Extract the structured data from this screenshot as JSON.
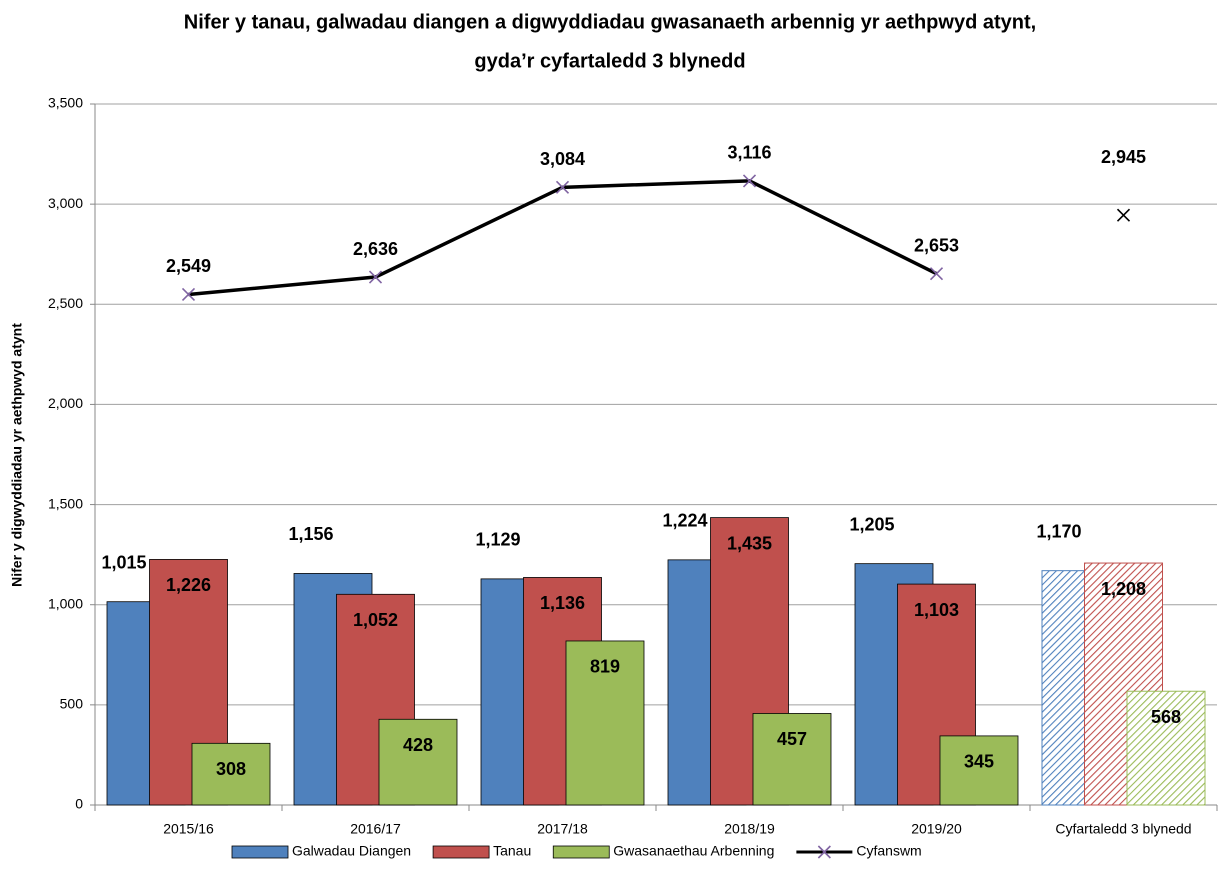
{
  "chart_data": {
    "type": "bar",
    "title": "Nifer y tanau, galwadau diangen a digwyddiadau gwasanaeth arbennig yr aethpwyd atynt,",
    "subtitle": "gyda’r cyfartaledd 3 blynedd",
    "y_label": "Nifer y digwyddiadau yr aethpwyd atynt",
    "categories": [
      "2015/16",
      "2016/17",
      "2017/18",
      "2018/19",
      "2019/20",
      "Cyfartaledd 3 blynedd"
    ],
    "hatched": [
      false,
      false,
      false,
      false,
      false,
      true
    ],
    "series": [
      {
        "name": "Galwadau Diangen",
        "type": "bar",
        "color": "#4f81bd",
        "values": [
          1015,
          1156,
          1129,
          1224,
          1205,
          1170
        ],
        "value_labels": [
          "1,015",
          "1,156",
          "1,129",
          "1,224",
          "1,205",
          "1,170"
        ]
      },
      {
        "name": "Tanau",
        "type": "bar",
        "color": "#c0504d",
        "values": [
          1226,
          1052,
          1136,
          1435,
          1103,
          1208
        ],
        "value_labels": [
          "1,226",
          "1,052",
          "1,136",
          "1,435",
          "1,103",
          "1,208"
        ]
      },
      {
        "name": "Gwasanaethau Arbenning",
        "type": "bar",
        "color": "#9bbb59",
        "values": [
          308,
          428,
          819,
          457,
          345,
          568
        ]
      },
      {
        "name": "Cyfanswm",
        "type": "line",
        "color": "#000000",
        "marker_color": "#8064a2",
        "values": [
          2549,
          2636,
          3084,
          3116,
          2653,
          2945
        ],
        "value_labels": [
          "2,549",
          "2,636",
          "3,084",
          "3,116",
          "2,653",
          "2,945"
        ]
      }
    ],
    "ylim": [
      0,
      3500
    ],
    "yticks": [
      0,
      500,
      {
        "value": 1000,
        "label": "1,000"
      },
      {
        "value": 1500,
        "label": "1,500"
      },
      {
        "value": 2000,
        "label": "2,000"
      },
      {
        "value": 2500,
        "label": "2,500"
      },
      {
        "value": 3000,
        "label": "3,000"
      },
      {
        "value": 3500,
        "label": "3,500"
      }
    ],
    "grid": true,
    "legend": "bottom"
  }
}
